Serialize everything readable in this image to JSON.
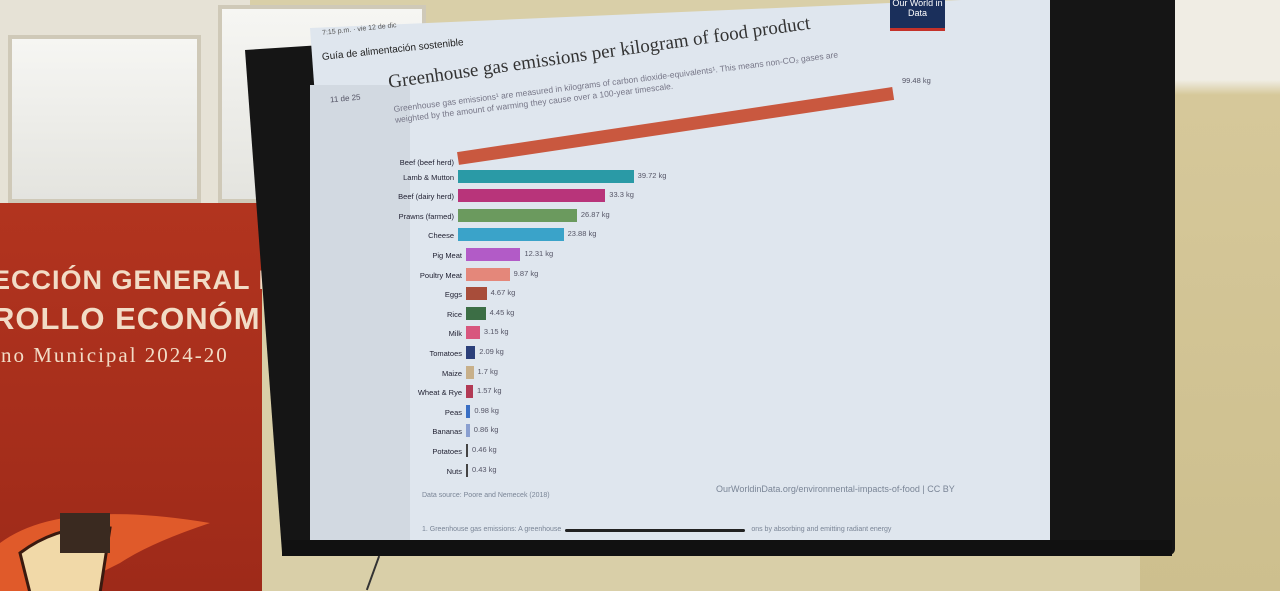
{
  "banner": {
    "line1": "ECCIÓN GENERAL D",
    "line2": "ROLLO ECONÓM",
    "line3": "rno Municipal 2024-20"
  },
  "doc": {
    "time": "7:15 p.m. · vie 12 de dic",
    "title": "Guía de alimentación sostenible",
    "page_indicator": "11 de 25"
  },
  "logo": {
    "text": "Our World in Data"
  },
  "chart_data": {
    "type": "bar",
    "orientation": "horizontal",
    "title": "Greenhouse gas emissions per kilogram of food product",
    "subtitle": "Greenhouse gas emissions¹ are measured in kilograms of carbon dioxide-equivalents¹. This means non-CO₂ gases are weighted by the amount of warming they cause over a 100-year timescale.",
    "unit": "kg",
    "categories": [
      "Beef (beef herd)",
      "Lamb & Mutton",
      "Beef (dairy herd)",
      "Prawns (farmed)",
      "Cheese",
      "Pig Meat",
      "Poultry Meat",
      "Eggs",
      "Rice",
      "Milk",
      "Tomatoes",
      "Maize",
      "Wheat & Rye",
      "Peas",
      "Bananas",
      "Potatoes",
      "Nuts"
    ],
    "values": [
      99.48,
      39.72,
      33.3,
      26.87,
      23.88,
      12.31,
      9.87,
      4.67,
      4.45,
      3.15,
      2.09,
      1.7,
      1.57,
      0.98,
      0.86,
      0.46,
      0.43
    ],
    "value_labels": [
      "99.48 kg",
      "39.72 kg",
      "33.3 kg",
      "26.87 kg",
      "23.88 kg",
      "12.31 kg",
      "9.87 kg",
      "4.67 kg",
      "4.45 kg",
      "3.15 kg",
      "2.09 kg",
      "1.7 kg",
      "1.57 kg",
      "0.98 kg",
      "0.86 kg",
      "0.46 kg",
      "0.43 kg"
    ],
    "colors": [
      "#c9583f",
      "#2a9aa6",
      "#b8347a",
      "#6b9a5e",
      "#3aa3c9",
      "#b25bc7",
      "#e4877a",
      "#a84d3a",
      "#3c6e45",
      "#d8567e",
      "#2b3f7a",
      "#c8b08a",
      "#b23a55",
      "#3a6fc4",
      "#8a9fd0",
      "#444444",
      "#444444"
    ],
    "source": "Data source: Poore and Nemecek (2018)",
    "url": "OurWorldinData.org/environmental-impacts-of-food | CC BY",
    "footnote_start": "1. Greenhouse gas emissions: A greenhouse",
    "footnote_end": "ons by absorbing and emitting radiant energy"
  }
}
